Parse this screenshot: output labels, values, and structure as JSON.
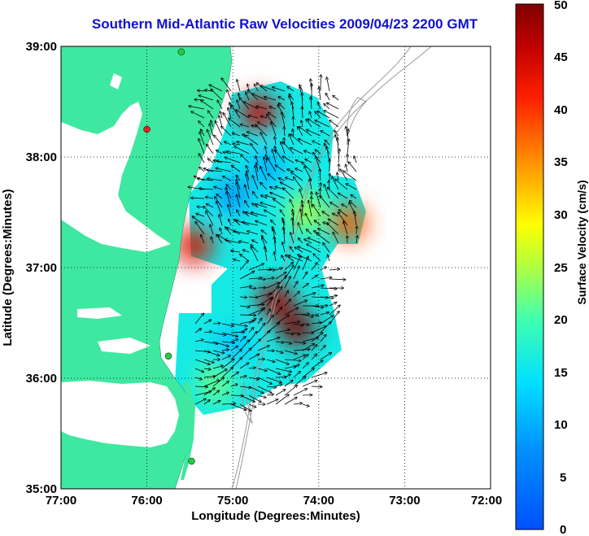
{
  "title": "Southern Mid-Atlantic Raw Velocities 2009/04/23 2200 GMT",
  "xlabel": "Longitude (Degrees:Minutes)",
  "ylabel": "Latitude (Degrees:Minutes)",
  "x_ticks": [
    "77:00",
    "76:00",
    "75:00",
    "74:00",
    "73:00",
    "72:00"
  ],
  "y_ticks": [
    "39:00",
    "38:00",
    "37:00",
    "36:00",
    "35:00"
  ],
  "colorbar": {
    "label": "Surface Velocity (cm/s)",
    "ticks": [
      "50",
      "45",
      "40",
      "35",
      "30",
      "25",
      "20",
      "15",
      "10",
      "5",
      "0"
    ],
    "range": [
      0,
      50
    ]
  },
  "colors": {
    "land": "#3fe8a0",
    "title": "#1010d0",
    "contour": "#9a9a9a",
    "station": "#22cc44",
    "station_red": "#ee2222"
  },
  "map": {
    "lon_range": [
      -77,
      -72
    ],
    "lat_range": [
      35,
      39
    ],
    "grid": "dotted",
    "stations": [
      {
        "lon": -75.6,
        "lat": 38.95,
        "type": "green"
      },
      {
        "lon": -76.0,
        "lat": 38.25,
        "type": "red"
      },
      {
        "lon": -75.75,
        "lat": 36.2,
        "type": "green"
      },
      {
        "lon": -75.48,
        "lat": 35.25,
        "type": "green"
      }
    ],
    "speed_patches": [
      {
        "lon": -74.7,
        "lat": 38.4,
        "speed": 45
      },
      {
        "lon": -75.0,
        "lat": 37.65,
        "speed": 8
      },
      {
        "lon": -74.6,
        "lat": 37.9,
        "speed": 10
      },
      {
        "lon": -74.15,
        "lat": 37.5,
        "speed": 25
      },
      {
        "lon": -73.65,
        "lat": 37.4,
        "speed": 38
      },
      {
        "lon": -75.45,
        "lat": 37.2,
        "speed": 44
      },
      {
        "lon": -74.5,
        "lat": 36.7,
        "speed": 48
      },
      {
        "lon": -74.25,
        "lat": 36.45,
        "speed": 50
      },
      {
        "lon": -75.0,
        "lat": 36.3,
        "speed": 12
      },
      {
        "lon": -75.2,
        "lat": 35.95,
        "speed": 22
      }
    ]
  }
}
